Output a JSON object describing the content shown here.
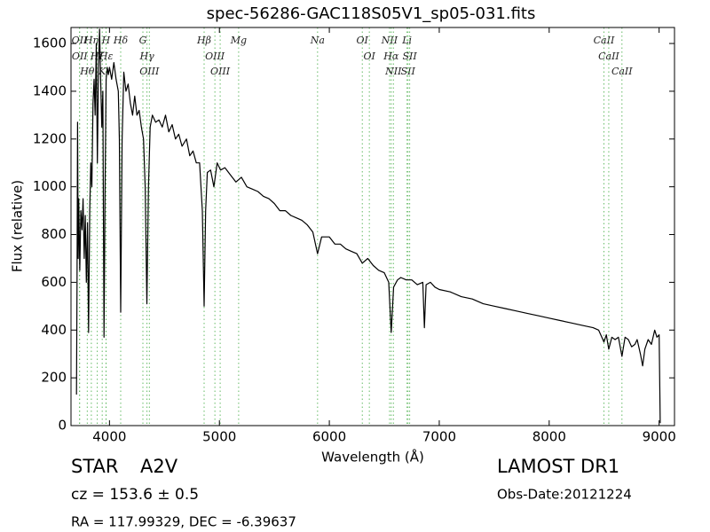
{
  "chart_data": {
    "type": "line",
    "title": "spec-56286-GAC118S05V1_sp05-031.fits",
    "xlabel": "Wavelength (Å)",
    "ylabel": "Flux (relative)",
    "color": "#000000",
    "line_color": "#66bb66",
    "xlim": [
      3650,
      9140
    ],
    "ylim": [
      0,
      1667
    ],
    "xticks": [
      4000,
      5000,
      6000,
      7000,
      8000,
      9000
    ],
    "yticks": [
      0,
      200,
      400,
      600,
      800,
      1000,
      1200,
      1400,
      1600
    ],
    "x": [
      3700,
      3705,
      3710,
      3715,
      3720,
      3730,
      3740,
      3750,
      3760,
      3770,
      3780,
      3790,
      3800,
      3810,
      3820,
      3830,
      3840,
      3850,
      3860,
      3870,
      3880,
      3890,
      3900,
      3910,
      3920,
      3930,
      3940,
      3950,
      3960,
      3970,
      3980,
      3990,
      4000,
      4020,
      4040,
      4060,
      4080,
      4090,
      4102,
      4115,
      4130,
      4150,
      4170,
      4190,
      4210,
      4230,
      4250,
      4270,
      4290,
      4310,
      4325,
      4340,
      4355,
      4370,
      4390,
      4420,
      4450,
      4480,
      4510,
      4540,
      4570,
      4600,
      4630,
      4660,
      4700,
      4730,
      4760,
      4790,
      4820,
      4845,
      4861,
      4875,
      4890,
      4920,
      4950,
      4980,
      5010,
      5050,
      5100,
      5150,
      5200,
      5250,
      5300,
      5350,
      5400,
      5450,
      5500,
      5550,
      5600,
      5650,
      5700,
      5750,
      5800,
      5850,
      5893,
      5930,
      6000,
      6050,
      6100,
      6150,
      6200,
      6250,
      6300,
      6350,
      6400,
      6450,
      6500,
      6540,
      6563,
      6585,
      6620,
      6650,
      6700,
      6750,
      6800,
      6850,
      6865,
      6880,
      6920,
      6960,
      7000,
      7100,
      7200,
      7300,
      7400,
      7500,
      7600,
      7700,
      7800,
      7900,
      8000,
      8100,
      8200,
      8300,
      8400,
      8450,
      8498,
      8520,
      8542,
      8570,
      8600,
      8630,
      8662,
      8690,
      8720,
      8750,
      8780,
      8800,
      8830,
      8850,
      8870,
      8900,
      8930,
      8960,
      8980,
      9000,
      9005,
      9010
    ],
    "values": [
      130,
      600,
      1270,
      700,
      950,
      650,
      900,
      820,
      950,
      700,
      880,
      600,
      850,
      390,
      900,
      1100,
      1000,
      1350,
      1450,
      1300,
      1600,
      1100,
      1500,
      1660,
      1450,
      1250,
      1400,
      370,
      1000,
      1450,
      1500,
      1470,
      1500,
      1450,
      1520,
      1450,
      1400,
      1200,
      475,
      1200,
      1480,
      1400,
      1430,
      1350,
      1300,
      1380,
      1300,
      1320,
      1250,
      1200,
      1000,
      510,
      1000,
      1250,
      1300,
      1270,
      1280,
      1250,
      1300,
      1230,
      1260,
      1200,
      1220,
      1170,
      1200,
      1130,
      1150,
      1100,
      1100,
      900,
      500,
      900,
      1060,
      1070,
      1000,
      1100,
      1070,
      1080,
      1050,
      1020,
      1040,
      1000,
      990,
      980,
      960,
      950,
      930,
      900,
      900,
      880,
      870,
      860,
      840,
      810,
      720,
      790,
      790,
      760,
      760,
      740,
      730,
      720,
      680,
      700,
      670,
      650,
      640,
      600,
      390,
      580,
      610,
      620,
      610,
      610,
      590,
      600,
      410,
      590,
      600,
      580,
      570,
      560,
      540,
      530,
      510,
      500,
      490,
      480,
      470,
      460,
      450,
      440,
      430,
      420,
      410,
      400,
      350,
      380,
      320,
      370,
      360,
      370,
      290,
      370,
      360,
      330,
      340,
      360,
      300,
      250,
      320,
      360,
      340,
      400,
      370,
      380,
      200,
      10
    ],
    "lines": [
      {
        "label": "OII",
        "x": 3727
      },
      {
        "label": "OII",
        "x": 3729
      },
      {
        "label": "Hθ",
        "x": 3798
      },
      {
        "label": "Hη",
        "x": 3835
      },
      {
        "label": "Hζ",
        "x": 3889
      },
      {
        "label": "K",
        "x": 3934
      },
      {
        "label": "H",
        "x": 3968
      },
      {
        "label": "Hε",
        "x": 3970
      },
      {
        "label": "Hδ",
        "x": 4102
      },
      {
        "label": "G",
        "x": 4304
      },
      {
        "label": "Hγ",
        "x": 4341
      },
      {
        "label": "OIII",
        "x": 4363
      },
      {
        "label": "Hβ",
        "x": 4861
      },
      {
        "label": "OIII",
        "x": 4959
      },
      {
        "label": "OIII",
        "x": 5007
      },
      {
        "label": "Mg",
        "x": 5175
      },
      {
        "label": "Na",
        "x": 5893
      },
      {
        "label": "OI",
        "x": 6300
      },
      {
        "label": "OI",
        "x": 6364
      },
      {
        "label": "NII",
        "x": 6548
      },
      {
        "label": "Hα",
        "x": 6563
      },
      {
        "label": "NII",
        "x": 6583
      },
      {
        "label": "Li",
        "x": 6707
      },
      {
        "label": "SII",
        "x": 6716
      },
      {
        "label": "SII",
        "x": 6731
      },
      {
        "label": "CaII",
        "x": 8498
      },
      {
        "label": "CaII",
        "x": 8542
      },
      {
        "label": "CaII",
        "x": 8662
      }
    ]
  },
  "info": {
    "class": "STAR",
    "subclass": "A2V",
    "cz": "cz = 153.6 ± 0.5",
    "coords": "RA = 117.99329, DEC = -6.39637",
    "survey": "LAMOST DR1",
    "obs_date": "Obs-Date:20121224"
  }
}
